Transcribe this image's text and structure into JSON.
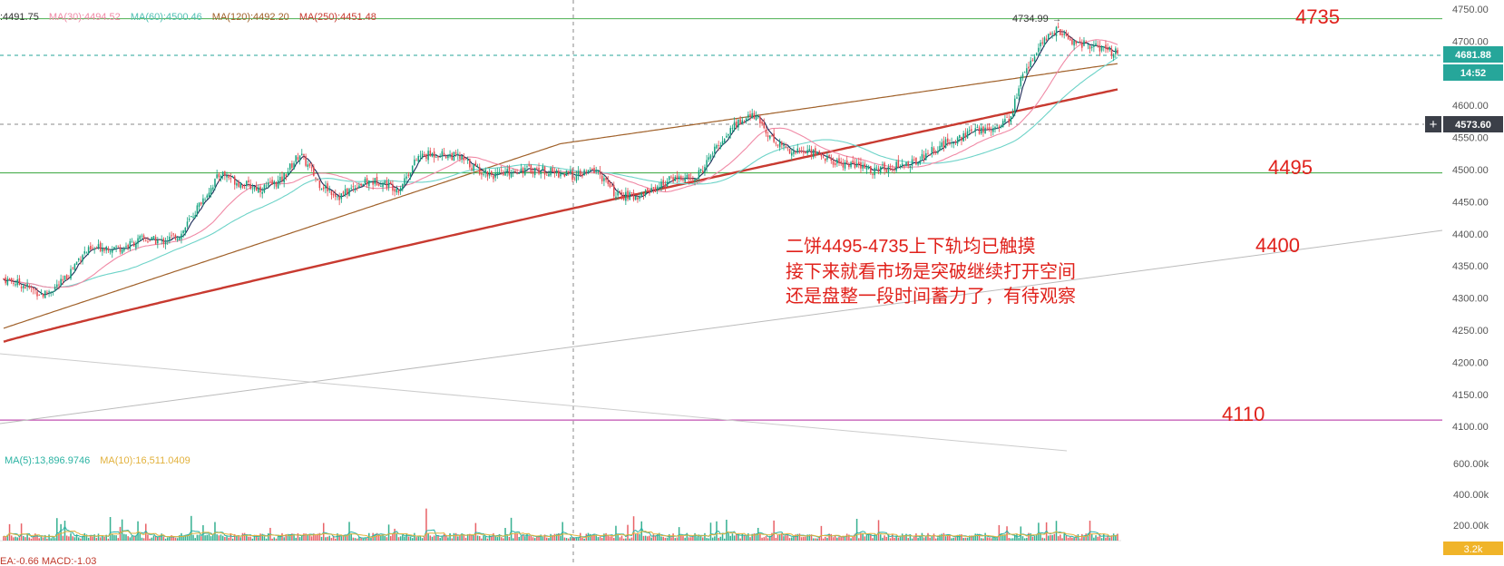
{
  "colors": {
    "up": "#14a37f",
    "down": "#e5484d",
    "accent": "#26a69a",
    "annotation": "#e0211b",
    "hline_green": "#4caf50",
    "hline_pink": "#c050b0",
    "ma5": "#1b2a57",
    "ma30": "#f08aa6",
    "ma60": "#6dd3c8",
    "ma120": "#a0612a",
    "ma250": "#c83a30",
    "vol_ma5": "#2bb3a3",
    "vol_ma10": "#e2b13c"
  },
  "legend_top": {
    "items": [
      {
        "label": ")",
        "value": ":4491.75",
        "color": "#333333"
      },
      {
        "label": "MA(30)",
        "value": ":4494.52",
        "color": "#f08aa6"
      },
      {
        "label": "MA(60)",
        "value": ":4500.46",
        "color": "#4fbfb3"
      },
      {
        "label": "MA(120)",
        "value": ":4492.20",
        "color": "#a0612a"
      },
      {
        "label": "MA(250)",
        "value": ":4451.48",
        "color": "#c83a30"
      }
    ]
  },
  "legend_volume": {
    "items": [
      {
        "label": "MA(5)",
        "value": ":13,896.9746",
        "color": "#2bb3a3"
      },
      {
        "label": "MA(10)",
        "value": ":16,511.0409",
        "color": "#e2b13c"
      }
    ]
  },
  "legend_macd": "EA:-0.66  MACD:-1.03",
  "price_axis": {
    "ticks": [
      "4750.00",
      "4700.00",
      "4650.00",
      "4600.00",
      "4550.00",
      "4500.00",
      "4450.00",
      "4400.00",
      "4350.00",
      "4300.00",
      "4250.00",
      "4200.00",
      "4150.00",
      "4100.00"
    ],
    "current_price": "4681.88",
    "countdown": "14:52",
    "crosshair_price": "4573.60",
    "plus_button": "+"
  },
  "volume_axis": {
    "ticks": [
      "600.00k",
      "400.00k",
      "200.00k"
    ],
    "current_volume": "3.2k"
  },
  "high_label": "4734.99",
  "levels": [
    {
      "price": 4735,
      "label": "4735",
      "color": "#4caf50"
    },
    {
      "price": 4495,
      "label": "4495",
      "color": "#4caf50"
    },
    {
      "price": 4110,
      "label": "4110",
      "color": "#c050b0"
    }
  ],
  "trendline_label": "4400",
  "annotation_lines": [
    "二饼4495-4735上下轨均已触摸",
    "接下来就看市场是突破继续打开空间",
    "还是盘整一段时间蓄力了，有待观察"
  ],
  "chart_data": {
    "type": "candlestick",
    "symbol_hint": "price with moving averages, volume and MACD",
    "price_range": [
      4080,
      4760
    ],
    "volume_range_k": [
      0,
      700
    ],
    "close_path": [
      {
        "i": 0,
        "v": 4330
      },
      {
        "i": 10,
        "v": 4320
      },
      {
        "i": 20,
        "v": 4305
      },
      {
        "i": 30,
        "v": 4325
      },
      {
        "i": 40,
        "v": 4370
      },
      {
        "i": 50,
        "v": 4380
      },
      {
        "i": 60,
        "v": 4378
      },
      {
        "i": 70,
        "v": 4392
      },
      {
        "i": 80,
        "v": 4388
      },
      {
        "i": 90,
        "v": 4400
      },
      {
        "i": 100,
        "v": 4450
      },
      {
        "i": 110,
        "v": 4495
      },
      {
        "i": 120,
        "v": 4478
      },
      {
        "i": 130,
        "v": 4470
      },
      {
        "i": 140,
        "v": 4482
      },
      {
        "i": 150,
        "v": 4525
      },
      {
        "i": 160,
        "v": 4478
      },
      {
        "i": 170,
        "v": 4458
      },
      {
        "i": 180,
        "v": 4478
      },
      {
        "i": 190,
        "v": 4482
      },
      {
        "i": 200,
        "v": 4470
      },
      {
        "i": 210,
        "v": 4520
      },
      {
        "i": 220,
        "v": 4525
      },
      {
        "i": 230,
        "v": 4520
      },
      {
        "i": 240,
        "v": 4500
      },
      {
        "i": 250,
        "v": 4490
      },
      {
        "i": 260,
        "v": 4500
      },
      {
        "i": 270,
        "v": 4500
      },
      {
        "i": 280,
        "v": 4495
      },
      {
        "i": 290,
        "v": 4490
      },
      {
        "i": 300,
        "v": 4500
      },
      {
        "i": 310,
        "v": 4460
      },
      {
        "i": 320,
        "v": 4458
      },
      {
        "i": 330,
        "v": 4472
      },
      {
        "i": 340,
        "v": 4488
      },
      {
        "i": 350,
        "v": 4484
      },
      {
        "i": 360,
        "v": 4530
      },
      {
        "i": 370,
        "v": 4570
      },
      {
        "i": 380,
        "v": 4585
      },
      {
        "i": 390,
        "v": 4545
      },
      {
        "i": 400,
        "v": 4528
      },
      {
        "i": 410,
        "v": 4528
      },
      {
        "i": 420,
        "v": 4512
      },
      {
        "i": 430,
        "v": 4508
      },
      {
        "i": 440,
        "v": 4498
      },
      {
        "i": 450,
        "v": 4505
      },
      {
        "i": 460,
        "v": 4510
      },
      {
        "i": 470,
        "v": 4530
      },
      {
        "i": 480,
        "v": 4545
      },
      {
        "i": 490,
        "v": 4558
      },
      {
        "i": 500,
        "v": 4565
      },
      {
        "i": 510,
        "v": 4580
      },
      {
        "i": 515,
        "v": 4640
      },
      {
        "i": 520,
        "v": 4670
      },
      {
        "i": 527,
        "v": 4700
      },
      {
        "i": 533,
        "v": 4720
      },
      {
        "i": 540,
        "v": 4700
      },
      {
        "i": 548,
        "v": 4695
      },
      {
        "i": 555,
        "v": 4688
      },
      {
        "i": 562,
        "v": 4682
      }
    ],
    "candle_count": 565
  }
}
